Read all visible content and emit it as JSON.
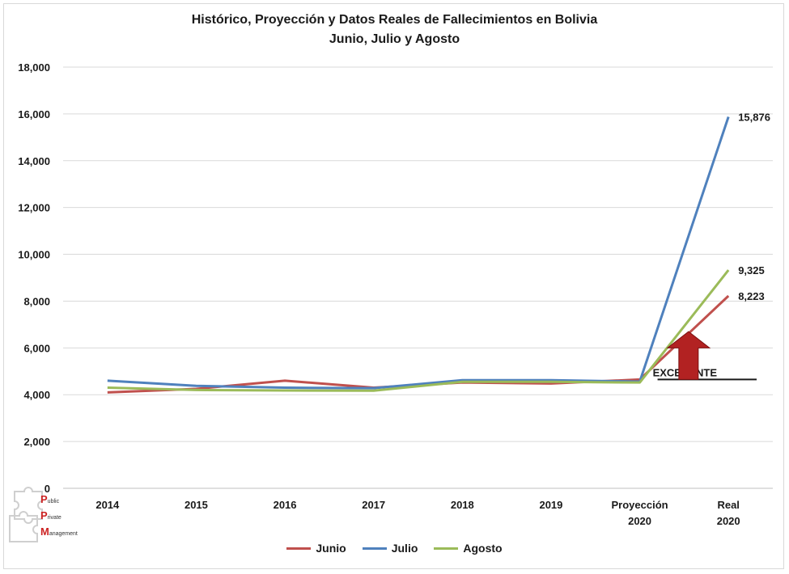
{
  "chart_data": {
    "type": "line",
    "title": "Histórico, Proyección y Datos Reales de Fallecimientos en Bolivia",
    "subtitle": "Junio, Julio y Agosto",
    "categories": [
      "2014",
      "2015",
      "2016",
      "2017",
      "2018",
      "2019",
      "Proyección 2020",
      "Real 2020"
    ],
    "ylim": [
      0,
      18000
    ],
    "yticks": [
      "0",
      "2,000",
      "4,000",
      "6,000",
      "8,000",
      "10,000",
      "12,000",
      "14,000",
      "16,000",
      "18,000"
    ],
    "ytick_values": [
      0,
      2000,
      4000,
      6000,
      8000,
      10000,
      12000,
      14000,
      16000,
      18000
    ],
    "grid": true,
    "legend_position": "bottom",
    "series": [
      {
        "name": "Junio",
        "color": "#c0504d",
        "values": [
          4100,
          4250,
          4600,
          4300,
          4520,
          4480,
          4650,
          8223
        ],
        "end_label": "8,223"
      },
      {
        "name": "Julio",
        "color": "#4f81bd",
        "values": [
          4600,
          4380,
          4300,
          4280,
          4620,
          4620,
          4560,
          15876
        ],
        "end_label": "15,876"
      },
      {
        "name": "Agosto",
        "color": "#9bbb59",
        "values": [
          4300,
          4200,
          4180,
          4170,
          4550,
          4550,
          4520,
          9325
        ],
        "end_label": "9,325"
      }
    ],
    "annotation": {
      "text": "EXCEDENTE",
      "arrow_color": "#b22222"
    }
  },
  "logo": {
    "lines": [
      {
        "cap": "P",
        "rest": "ublic"
      },
      {
        "cap": "P",
        "rest": "rivate"
      },
      {
        "cap": "M",
        "rest": "anagement"
      }
    ]
  }
}
